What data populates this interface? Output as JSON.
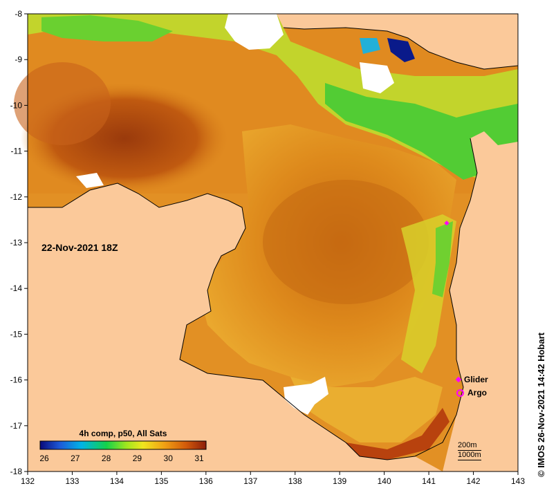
{
  "date_label": "22-Nov-2021 18Z",
  "credit": "© IMOS 26-Nov-2021 14:42 Hobart",
  "legend": {
    "glider_label": "Glider",
    "argo_label": "Argo",
    "marker_color": "#ff00ff"
  },
  "colorbar": {
    "title": "4h comp, p50, All Sats",
    "ticks": [
      "26",
      "27",
      "28",
      "29",
      "30",
      "31"
    ],
    "colors": [
      "#0a0a7a",
      "#1e5ad8",
      "#00b4e6",
      "#14d24a",
      "#a0e61e",
      "#f0e61e",
      "#f0a014",
      "#d25a0a",
      "#8c1e0a"
    ]
  },
  "scale": {
    "contour_1": "200m",
    "contour_2": "1000m"
  },
  "axes": {
    "x_ticks": [
      "132",
      "133",
      "134",
      "135",
      "136",
      "137",
      "138",
      "139",
      "140",
      "141",
      "142",
      "143"
    ],
    "y_ticks": [
      "-8",
      "-9",
      "-10",
      "-11",
      "-12",
      "-13",
      "-14",
      "-15",
      "-16",
      "-17",
      "-18"
    ],
    "x_range": [
      132,
      143
    ],
    "y_range": [
      -18,
      -8
    ]
  },
  "colors": {
    "land": "#fbc99a",
    "no_data": "#ffffff",
    "warm_sea": "#e08a1e",
    "hot_sea": "#b8500e",
    "mid_sea": "#eeb43a",
    "cool_sea": "#7ad02a",
    "cold_sea": "#2acb3a"
  }
}
